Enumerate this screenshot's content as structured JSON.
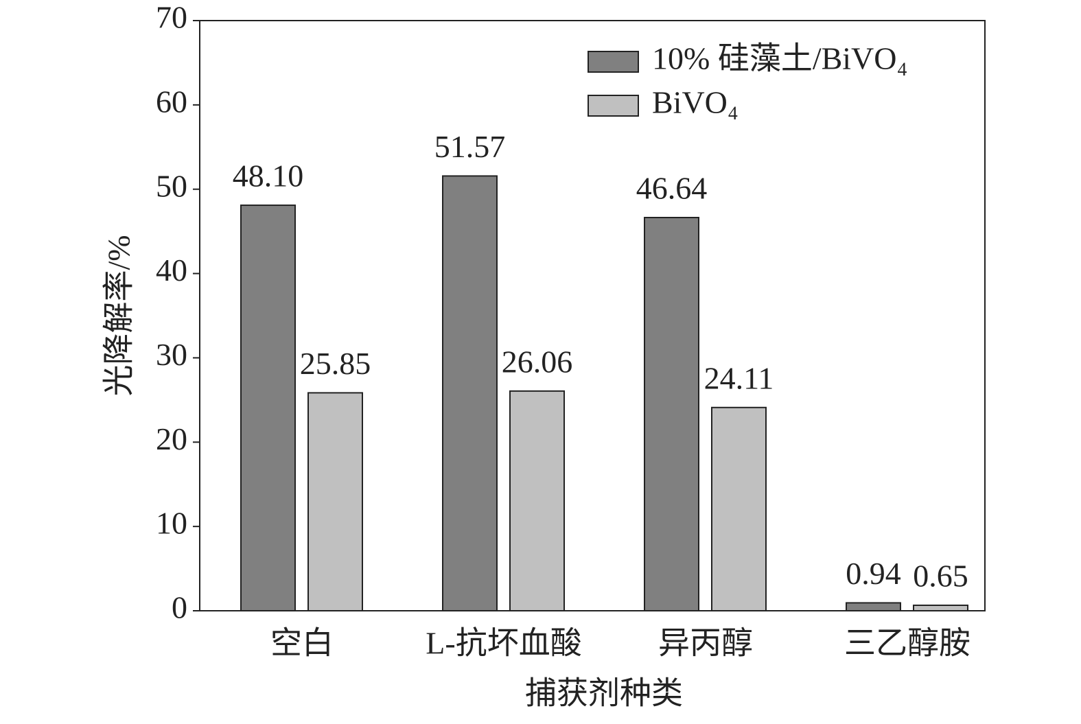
{
  "chart_data": {
    "type": "bar",
    "x_label": "捕获剂种类",
    "y_label": "光降解率/%",
    "categories": [
      "空白",
      "L-抗坏血酸",
      "异丙醇",
      "三乙醇胺"
    ],
    "series": [
      {
        "name": "10% 硅藻土/BiVO₄",
        "color": "#808080",
        "values": [
          48.1,
          51.57,
          46.64,
          0.94
        ],
        "value_labels": [
          "48.10",
          "51.57",
          "46.64",
          "0.94"
        ]
      },
      {
        "name": "BiVO₄",
        "color": "#c0c0c0",
        "values": [
          25.85,
          26.06,
          24.11,
          0.65
        ],
        "value_labels": [
          "25.85",
          "26.06",
          "24.11",
          "0.65"
        ]
      }
    ],
    "ylim": [
      0,
      70
    ],
    "yticks": [
      0,
      10,
      20,
      30,
      40,
      50,
      60,
      70
    ],
    "legend": "upper right"
  }
}
